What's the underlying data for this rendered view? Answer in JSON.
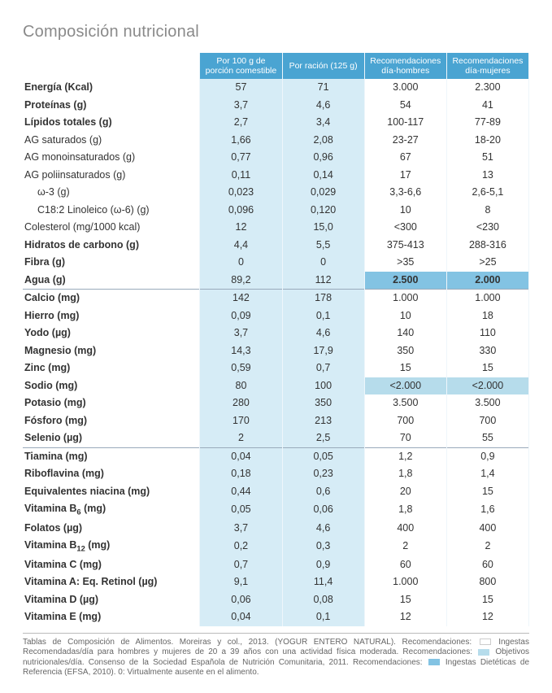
{
  "title": "Composición nutricional",
  "columns": [
    "Por 100 g de porción comestible",
    "Por ración (125 g)",
    "Recomendaciones día-hombres",
    "Recomendaciones día-mujeres"
  ],
  "colors": {
    "header_bg": "#4aa4d2",
    "valcol_bg": "#d6ecf6",
    "reccol_bg": "#ffffff",
    "hl_strong": "#83c3e3",
    "hl_soft": "#b6dceb",
    "title_gray": "#8a8a8a"
  },
  "sections": [
    {
      "rows": [
        {
          "label": "Energía (Kcal)",
          "bold": true,
          "v100": "57",
          "vrac": "71",
          "rh": "3.000",
          "rm": "2.300"
        },
        {
          "label": "Proteínas (g)",
          "bold": true,
          "v100": "3,7",
          "vrac": "4,6",
          "rh": "54",
          "rm": "41"
        },
        {
          "label": "Lípidos totales (g)",
          "bold": true,
          "v100": "2,7",
          "vrac": "3,4",
          "rh": "100-117",
          "rm": "77-89"
        },
        {
          "label": "AG saturados (g)",
          "v100": "1,66",
          "vrac": "2,08",
          "rh": "23-27",
          "rm": "18-20"
        },
        {
          "label": "AG monoinsaturados (g)",
          "v100": "0,77",
          "vrac": "0,96",
          "rh": "67",
          "rm": "51"
        },
        {
          "label": "AG poliinsaturados (g)",
          "v100": "0,11",
          "vrac": "0,14",
          "rh": "17",
          "rm": "13"
        },
        {
          "label": "ω-3 (g)",
          "indent": 1,
          "v100": "0,023",
          "vrac": "0,029",
          "rh": "3,3-6,6",
          "rm": "2,6-5,1"
        },
        {
          "label": "C18:2 Linoleico (ω-6) (g)",
          "indent": 1,
          "v100": "0,096",
          "vrac": "0,120",
          "rh": "10",
          "rm": "8"
        },
        {
          "label": "Colesterol (mg/1000 kcal)",
          "v100": "12",
          "vrac": "15,0",
          "rh": "<300",
          "rm": "<230"
        },
        {
          "label": "Hidratos de carbono (g)",
          "bold": true,
          "v100": "4,4",
          "vrac": "5,5",
          "rh": "375-413",
          "rm": "288-316"
        },
        {
          "label": "Fibra (g)",
          "bold": true,
          "v100": "0",
          "vrac": "0",
          "rh": ">35",
          "rm": ">25"
        },
        {
          "label": "Agua (g)",
          "bold": true,
          "v100": "89,2",
          "vrac": "112",
          "rh": "2.500",
          "rm": "2.000",
          "rec_highlight": "hl1"
        }
      ]
    },
    {
      "rows": [
        {
          "label": "Calcio (mg)",
          "bold": true,
          "v100": "142",
          "vrac": "178",
          "rh": "1.000",
          "rm": "1.000"
        },
        {
          "label": "Hierro (mg)",
          "bold": true,
          "v100": "0,09",
          "vrac": "0,1",
          "rh": "10",
          "rm": "18"
        },
        {
          "label": "Yodo (µg)",
          "bold": true,
          "v100": "3,7",
          "vrac": "4,6",
          "rh": "140",
          "rm": "110"
        },
        {
          "label": "Magnesio (mg)",
          "bold": true,
          "v100": "14,3",
          "vrac": "17,9",
          "rh": "350",
          "rm": "330"
        },
        {
          "label": "Zinc (mg)",
          "bold": true,
          "v100": "0,59",
          "vrac": "0,7",
          "rh": "15",
          "rm": "15"
        },
        {
          "label": "Sodio (mg)",
          "bold": true,
          "v100": "80",
          "vrac": "100",
          "rh": "<2.000",
          "rm": "<2.000",
          "rec_highlight": "hl2"
        },
        {
          "label": "Potasio (mg)",
          "bold": true,
          "v100": "280",
          "vrac": "350",
          "rh": "3.500",
          "rm": "3.500"
        },
        {
          "label": "Fósforo (mg)",
          "bold": true,
          "v100": "170",
          "vrac": "213",
          "rh": "700",
          "rm": "700"
        },
        {
          "label": "Selenio (µg)",
          "bold": true,
          "v100": "2",
          "vrac": "2,5",
          "rh": "70",
          "rm": "55"
        }
      ]
    },
    {
      "rows": [
        {
          "label": "Tiamina (mg)",
          "bold": true,
          "v100": "0,04",
          "vrac": "0,05",
          "rh": "1,2",
          "rm": "0,9"
        },
        {
          "label": "Riboflavina (mg)",
          "bold": true,
          "v100": "0,18",
          "vrac": "0,23",
          "rh": "1,8",
          "rm": "1,4"
        },
        {
          "label": "Equivalentes niacina (mg)",
          "bold": true,
          "v100": "0,44",
          "vrac": "0,6",
          "rh": "20",
          "rm": "15"
        },
        {
          "label_html": "Vitamina B<sub>6</sub> (mg)",
          "bold": true,
          "v100": "0,05",
          "vrac": "0,06",
          "rh": "1,8",
          "rm": "1,6"
        },
        {
          "label": "Folatos (µg)",
          "bold": true,
          "v100": "3,7",
          "vrac": "4,6",
          "rh": "400",
          "rm": "400"
        },
        {
          "label_html": "Vitamina B<sub>12</sub> (mg)",
          "bold": true,
          "v100": "0,2",
          "vrac": "0,3",
          "rh": "2",
          "rm": "2"
        },
        {
          "label": "Vitamina C (mg)",
          "bold": true,
          "v100": "0,7",
          "vrac": "0,9",
          "rh": "60",
          "rm": "60"
        },
        {
          "label": "Vitamina A: Eq. Retinol (µg)",
          "bold": true,
          "v100": "9,1",
          "vrac": "11,4",
          "rh": "1.000",
          "rm": "800"
        },
        {
          "label": "Vitamina D (µg)",
          "bold": true,
          "v100": "0,06",
          "vrac": "0,08",
          "rh": "15",
          "rm": "15"
        },
        {
          "label": "Vitamina E (mg)",
          "bold": true,
          "v100": "0,04",
          "vrac": "0,1",
          "rh": "12",
          "rm": "12"
        }
      ]
    }
  ],
  "footnote": {
    "pre": "Tablas de Composición de Alimentos. Moreiras y col., 2013. (YOGUR ENTERO NATURAL). Recomendaciones: ",
    "part1": " Ingestas Recomendadas/día para hombres y mujeres de 20 a 39 años con una actividad física moderada. Recomendaciones: ",
    "part2": " Objetivos nutricionales/día. Consenso de la Sociedad Española de Nutrición Comunitaria, 2011. Recomendaciones: ",
    "part3": " Ingestas Dietéticas de Referencia (EFSA, 2010). 0: Virtualmente ausente en el alimento.",
    "swatch1_color": "#ffffff",
    "swatch2_color": "#b6dceb",
    "swatch3_color": "#83c3e3"
  }
}
